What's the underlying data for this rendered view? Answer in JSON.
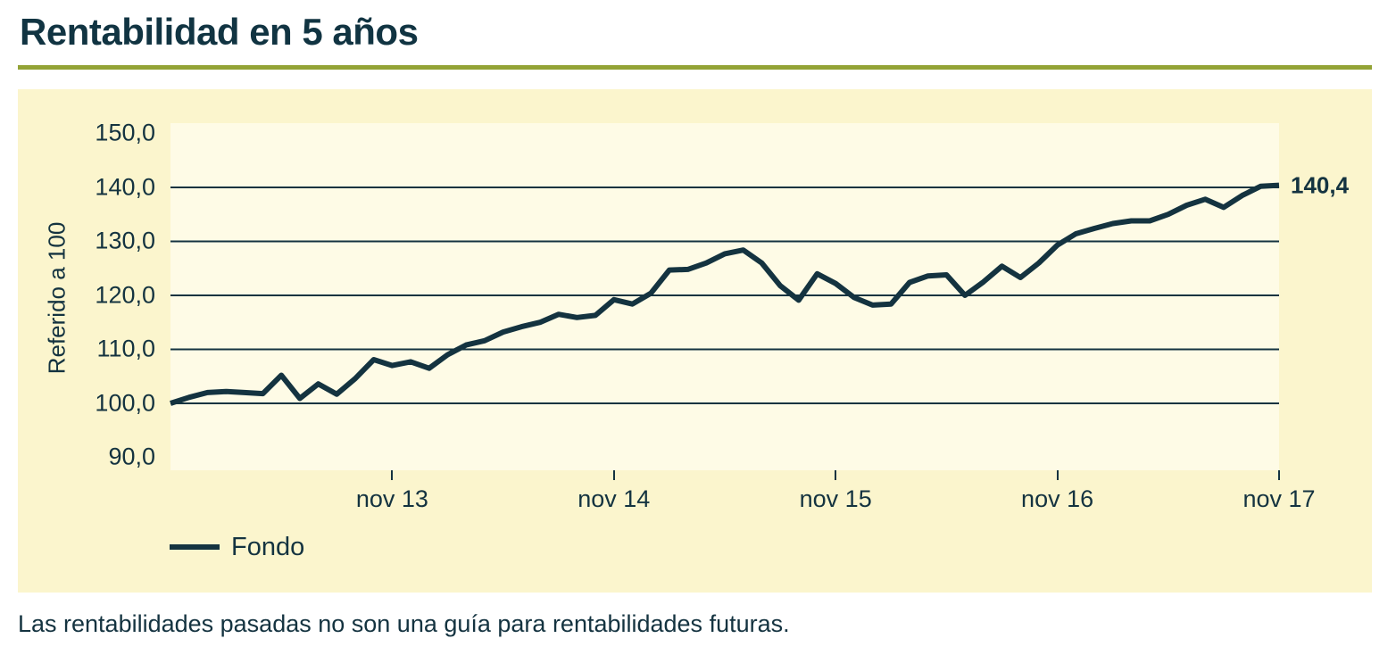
{
  "header": {
    "title": "Rentabilidad en 5 años"
  },
  "colors": {
    "ink": "#143340",
    "line": "#143340",
    "accent_rule": "#93A336",
    "panel_background": "#FBF5CD",
    "plot_background": "#FEFBE6"
  },
  "chart_data": {
    "type": "line",
    "title": "Rentabilidad en 5 años",
    "xlabel": "",
    "ylabel": "Referido a 100",
    "ylim": [
      87.6,
      151.9
    ],
    "grid": "horizontal gridlines only",
    "gridline_values": [
      100,
      110,
      120,
      130,
      140
    ],
    "y_ticks": [
      {
        "value": 150,
        "label": "150,0"
      },
      {
        "value": 140,
        "label": "140,0"
      },
      {
        "value": 130,
        "label": "130,0"
      },
      {
        "value": 120,
        "label": "120,0"
      },
      {
        "value": 110,
        "label": "110,0"
      },
      {
        "value": 100,
        "label": "100,0"
      },
      {
        "value": 90,
        "label": "90,0"
      }
    ],
    "x_total_months": 60,
    "x_ticks": [
      {
        "month": 12,
        "label": "nov 13"
      },
      {
        "month": 24,
        "label": "nov 14"
      },
      {
        "month": 36,
        "label": "nov 15"
      },
      {
        "month": 48,
        "label": "nov 16"
      },
      {
        "month": 60,
        "label": "nov 17"
      }
    ],
    "legend_position": "bottom-left",
    "end_annotation": {
      "value": 140.4,
      "label": "140,4"
    },
    "series": [
      {
        "name": "Fondo",
        "frequency": "monthly",
        "start": "nov 12",
        "end": "nov 17",
        "values": [
          100.0,
          101.1,
          102.0,
          102.2,
          102.0,
          101.8,
          105.2,
          100.9,
          103.6,
          101.7,
          104.6,
          108.1,
          107.0,
          107.7,
          106.5,
          109.0,
          110.8,
          111.6,
          113.2,
          114.2,
          115.0,
          116.5,
          115.9,
          116.3,
          119.2,
          118.4,
          120.4,
          124.7,
          124.8,
          126.0,
          127.7,
          128.4,
          126.0,
          121.8,
          119.1,
          124.0,
          122.2,
          119.6,
          118.2,
          118.4,
          122.4,
          123.6,
          123.8,
          120.0,
          122.5,
          125.4,
          123.3,
          126.0,
          129.3,
          131.4,
          132.4,
          133.3,
          133.8,
          133.8,
          135.0,
          136.7,
          137.8,
          136.3,
          138.5,
          140.2,
          140.4
        ]
      }
    ]
  },
  "footer": {
    "note": "Las rentabilidades pasadas no son una guía para rentabilidades futuras."
  }
}
